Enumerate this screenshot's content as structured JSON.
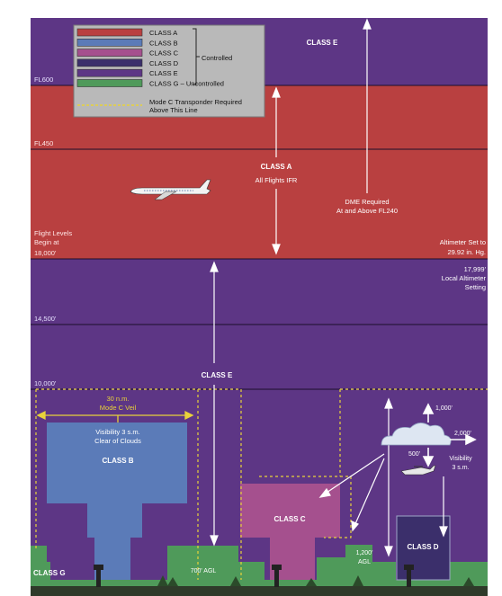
{
  "legend": {
    "items": [
      {
        "label": "CLASS A",
        "color": "#b94040"
      },
      {
        "label": "CLASS B",
        "color": "#5b7bb8"
      },
      {
        "label": "CLASS C",
        "color": "#a5508e"
      },
      {
        "label": "CLASS D",
        "color": "#3b2f6b"
      },
      {
        "label": "CLASS E",
        "color": "#5d3685"
      },
      {
        "label": "CLASS G – Uncontrolled",
        "color": "#4f9a5a"
      }
    ],
    "controlled_label": "Controlled",
    "transponder_line1": "Mode C Transponder Required",
    "transponder_line2": "Above This Line"
  },
  "altitudes": {
    "fl600": "FL600",
    "fl450": "FL450",
    "fl_begin_1": "Flight Levels",
    "fl_begin_2": "Begin at",
    "fl_begin_3": "18,000'",
    "a14500": "14,500'",
    "a10000": "10,000'"
  },
  "labels": {
    "class_e_top": "CLASS E",
    "class_a": "CLASS A",
    "all_flights_ifr": "All Flights IFR",
    "dme_1": "DME Required",
    "dme_2": "At and Above FL240",
    "altimeter_1": "Altimeter Set to",
    "altimeter_2": "29.92 in. Hg.",
    "local_1": "17,999'",
    "local_2": "Local Altimeter",
    "local_3": "Setting",
    "class_e_mid": "CLASS E",
    "veil_1": "30 n.m.",
    "veil_2": "Mode C Veil",
    "vis_b_1": "Visibility 3 s.m.",
    "vis_b_2": "Clear of Clouds",
    "class_b": "CLASS B",
    "class_c": "CLASS C",
    "class_d": "CLASS D",
    "class_g": "CLASS G",
    "agl_700": "700' AGL",
    "agl_1200_1": "1,200'",
    "agl_1200_2": "AGL",
    "cloud_1000": "1,000'",
    "cloud_2000": "2,000'",
    "cloud_500": "500'",
    "vis_d_1": "Visibility",
    "vis_d_2": "3 s.m."
  },
  "colors": {
    "class_e": "#5d3685",
    "class_a": "#b94040",
    "class_b": "#5b7bb8",
    "class_c": "#a5508e",
    "class_d": "#3b2f6b",
    "class_g": "#4f9a5a",
    "veil": "#e8d23a"
  }
}
